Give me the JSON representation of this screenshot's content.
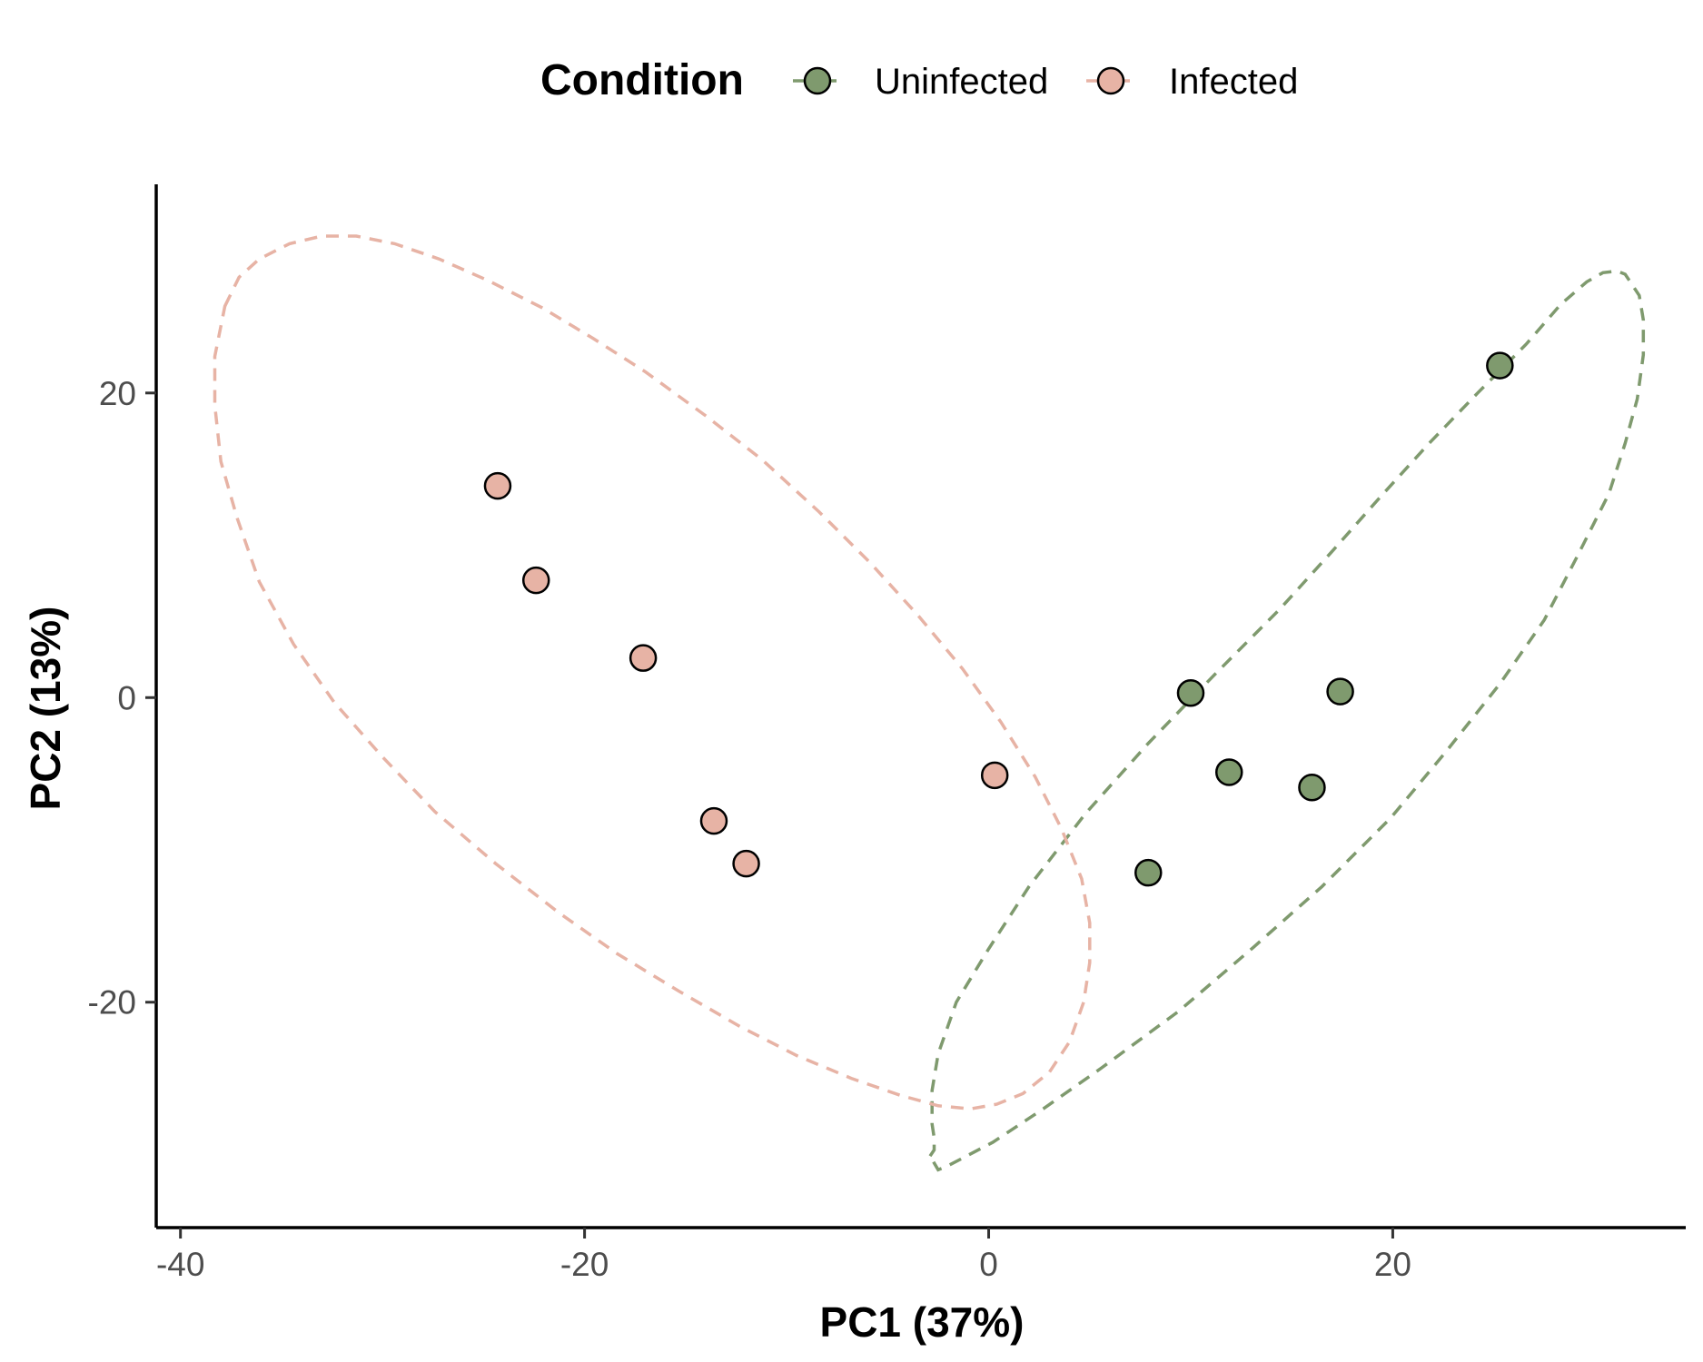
{
  "chart_data": {
    "type": "scatter",
    "xlabel": "PC1 (37%)",
    "ylabel": "PC2 (13%)",
    "xlim": [
      -41.2,
      34.5
    ],
    "ylim": [
      -34.8,
      33.7
    ],
    "x_ticks": [
      -40,
      -20,
      0,
      20
    ],
    "y_ticks": [
      -20,
      0,
      20
    ],
    "grid": false,
    "legend": {
      "title": "Condition",
      "placement": "top",
      "entries": [
        "Uninfected",
        "Infected"
      ]
    },
    "series": [
      {
        "name": "Uninfected",
        "color": "#7f9a6e",
        "points": [
          {
            "x": 25.3,
            "y": 21.8
          },
          {
            "x": 10.0,
            "y": 0.3
          },
          {
            "x": 17.4,
            "y": 0.4
          },
          {
            "x": 11.9,
            "y": -4.9
          },
          {
            "x": 16.0,
            "y": -5.9
          },
          {
            "x": 7.9,
            "y": -11.5
          }
        ],
        "ellipse": [
          [
            -2.9,
            -30.1
          ],
          [
            -2.7,
            -29.7
          ],
          [
            -2.7,
            -28.9
          ],
          [
            -2.8,
            -28.0
          ],
          [
            -2.8,
            -25.8
          ],
          [
            -2.5,
            -23.4
          ],
          [
            -1.6,
            -20.0
          ],
          [
            0.0,
            -16.5
          ],
          [
            2.0,
            -12.4
          ],
          [
            4.8,
            -7.6
          ],
          [
            7.9,
            -3.0
          ],
          [
            11.1,
            1.4
          ],
          [
            14.4,
            5.8
          ],
          [
            17.0,
            9.6
          ],
          [
            19.4,
            13.2
          ],
          [
            21.8,
            16.7
          ],
          [
            24.2,
            20.0
          ],
          [
            26.6,
            23.2
          ],
          [
            28.3,
            25.8
          ],
          [
            29.6,
            27.3
          ],
          [
            30.4,
            27.9
          ],
          [
            31.1,
            28.0
          ],
          [
            31.5,
            27.8
          ],
          [
            31.9,
            27.0
          ],
          [
            32.2,
            26.4
          ],
          [
            32.4,
            24.8
          ],
          [
            32.4,
            22.5
          ],
          [
            32.1,
            19.6
          ],
          [
            31.5,
            16.7
          ],
          [
            30.7,
            13.4
          ],
          [
            29.1,
            9.2
          ],
          [
            27.5,
            5.1
          ],
          [
            25.3,
            0.9
          ],
          [
            22.6,
            -3.6
          ],
          [
            19.9,
            -7.9
          ],
          [
            16.5,
            -12.4
          ],
          [
            13.1,
            -16.4
          ],
          [
            9.4,
            -20.6
          ],
          [
            5.6,
            -24.3
          ],
          [
            2.7,
            -27.0
          ],
          [
            0.2,
            -29.2
          ],
          [
            -2.1,
            -30.8
          ],
          [
            -2.3,
            -30.9
          ],
          [
            -2.5,
            -31.0
          ],
          [
            -2.9,
            -30.1
          ]
        ]
      },
      {
        "name": "Infected",
        "color": "#e7b3a5",
        "points": [
          {
            "x": -24.3,
            "y": 13.9
          },
          {
            "x": -22.4,
            "y": 7.7
          },
          {
            "x": -17.1,
            "y": 2.6
          },
          {
            "x": -13.6,
            "y": -8.1
          },
          {
            "x": -12.0,
            "y": -10.9
          },
          {
            "x": 0.3,
            "y": -5.1
          }
        ],
        "ellipse": [
          [
            -37.8,
            25.7
          ],
          [
            -37.1,
            27.6
          ],
          [
            -36.1,
            28.8
          ],
          [
            -34.6,
            29.8
          ],
          [
            -33.0,
            30.3
          ],
          [
            -31.3,
            30.3
          ],
          [
            -29.4,
            29.8
          ],
          [
            -27.2,
            28.8
          ],
          [
            -24.8,
            27.4
          ],
          [
            -22.1,
            25.6
          ],
          [
            -19.6,
            23.6
          ],
          [
            -17.0,
            21.4
          ],
          [
            -14.0,
            18.5
          ],
          [
            -11.2,
            15.6
          ],
          [
            -8.4,
            12.2
          ],
          [
            -5.9,
            8.9
          ],
          [
            -3.5,
            5.4
          ],
          [
            -1.3,
            1.9
          ],
          [
            0.6,
            -1.6
          ],
          [
            2.3,
            -5.2
          ],
          [
            3.6,
            -8.6
          ],
          [
            4.6,
            -11.9
          ],
          [
            5.0,
            -14.8
          ],
          [
            5.0,
            -17.4
          ],
          [
            4.7,
            -20.0
          ],
          [
            4.0,
            -22.6
          ],
          [
            3.0,
            -24.6
          ],
          [
            1.7,
            -26.0
          ],
          [
            0.4,
            -26.7
          ],
          [
            -0.9,
            -27.0
          ],
          [
            -2.5,
            -26.8
          ],
          [
            -4.4,
            -26.1
          ],
          [
            -6.8,
            -25.0
          ],
          [
            -9.5,
            -23.5
          ],
          [
            -12.3,
            -21.6
          ],
          [
            -15.3,
            -19.3
          ],
          [
            -18.4,
            -16.8
          ],
          [
            -21.3,
            -14.1
          ],
          [
            -24.4,
            -10.9
          ],
          [
            -27.4,
            -7.5
          ],
          [
            -30.0,
            -3.9
          ],
          [
            -32.4,
            -0.3
          ],
          [
            -34.4,
            3.5
          ],
          [
            -36.1,
            7.6
          ],
          [
            -37.2,
            11.8
          ],
          [
            -38.0,
            15.5
          ],
          [
            -38.3,
            19.2
          ],
          [
            -38.3,
            22.4
          ],
          [
            -37.8,
            25.7
          ]
        ]
      }
    ]
  }
}
